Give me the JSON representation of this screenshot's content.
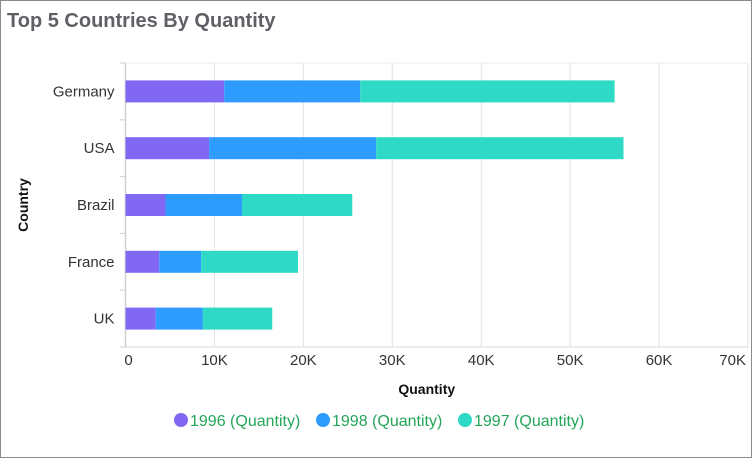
{
  "chart_data": {
    "type": "bar",
    "orientation": "horizontal",
    "stacked": true,
    "title": "Top 5 Countries By Quantity",
    "xlabel": "Quantity",
    "ylabel": "Country",
    "categories": [
      "Germany",
      "USA",
      "Brazil",
      "France",
      "UK"
    ],
    "series": [
      {
        "name": "1996 (Quantity)",
        "color": "#8068f5",
        "values": [
          11100,
          9400,
          4500,
          3800,
          3400
        ]
      },
      {
        "name": "1998 (Quantity)",
        "color": "#2e9bff",
        "values": [
          15300,
          18800,
          8600,
          4700,
          5300
        ]
      },
      {
        "name": "1997 (Quantity)",
        "color": "#2ed9c5",
        "values": [
          28600,
          27800,
          12400,
          10900,
          7800
        ]
      }
    ],
    "xlim": [
      0,
      70000
    ],
    "xticks": [
      "0",
      "10K",
      "20K",
      "30K",
      "40K",
      "50K",
      "60K",
      "70K"
    ],
    "grid": true,
    "legend": "bottom"
  }
}
